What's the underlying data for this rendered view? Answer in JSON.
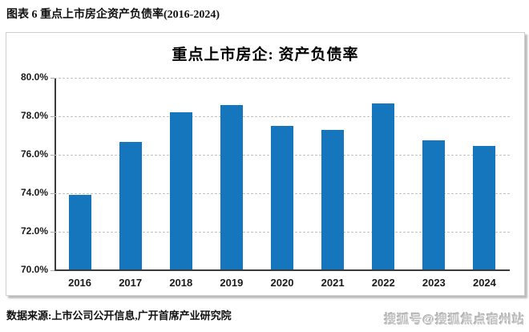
{
  "page": {
    "header": "图表 6 重点上市房企资产负债率(2016-2024)",
    "source_note": "数据来源:上市公司公开信息,广开首席产业研究院",
    "watermark": "搜狐号@搜狐焦点宿州站"
  },
  "chart_data": {
    "type": "bar",
    "title": "重点上市房企: 资产负债率",
    "categories": [
      "2016",
      "2017",
      "2018",
      "2019",
      "2020",
      "2021",
      "2022",
      "2023",
      "2024"
    ],
    "values": [
      73.9,
      76.65,
      78.2,
      78.6,
      77.5,
      77.3,
      78.65,
      76.75,
      76.45
    ],
    "unit": "%",
    "ylim": [
      70,
      80
    ],
    "yticks": [
      80,
      78,
      76,
      74,
      72,
      70
    ],
    "ytick_labels": [
      "80.0%",
      "78.0%",
      "76.0%",
      "74.0%",
      "72.0%",
      "70.0%"
    ],
    "grid": "horizontal-dashed",
    "legend": "none",
    "bar_color": "#1576BD",
    "axis_color": "#3a3a3a"
  }
}
